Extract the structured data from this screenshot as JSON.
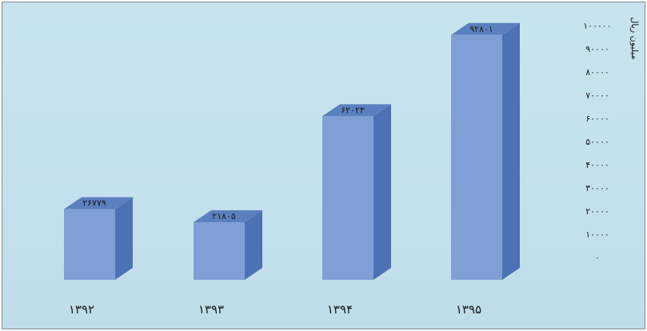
{
  "chart_data": {
    "type": "bar",
    "title": "",
    "xlabel": "",
    "ylabel": "میلیون ریال",
    "categories": [
      "۱۳۹۲",
      "۱۳۹۳",
      "۱۳۹۴",
      "۱۳۹۵"
    ],
    "values": [
      26779,
      21805,
      62023,
      92801
    ],
    "data_labels": [
      "۲۶۷۷۹",
      "۲۱۸۰۵",
      "۶۲۰۲۳",
      "۹۲۸۰۱"
    ],
    "ylim": [
      0,
      100000
    ],
    "yticks": [
      0,
      10000,
      20000,
      30000,
      40000,
      50000,
      60000,
      70000,
      80000,
      90000,
      100000
    ],
    "ytick_labels": [
      "۰",
      "۱۰۰۰۰",
      "۲۰۰۰۰",
      "۳۰۰۰۰",
      "۴۰۰۰۰",
      "۵۰۰۰۰",
      "۶۰۰۰۰",
      "۷۰۰۰۰",
      "۸۰۰۰۰",
      "۹۰۰۰۰",
      "۱۰۰۰۰۰"
    ],
    "bar_color": "#7f9fd6",
    "bar_side_color": "#4d72b3",
    "bar_top_color": "#5b80c0",
    "grid": false,
    "style": "3d-column"
  }
}
